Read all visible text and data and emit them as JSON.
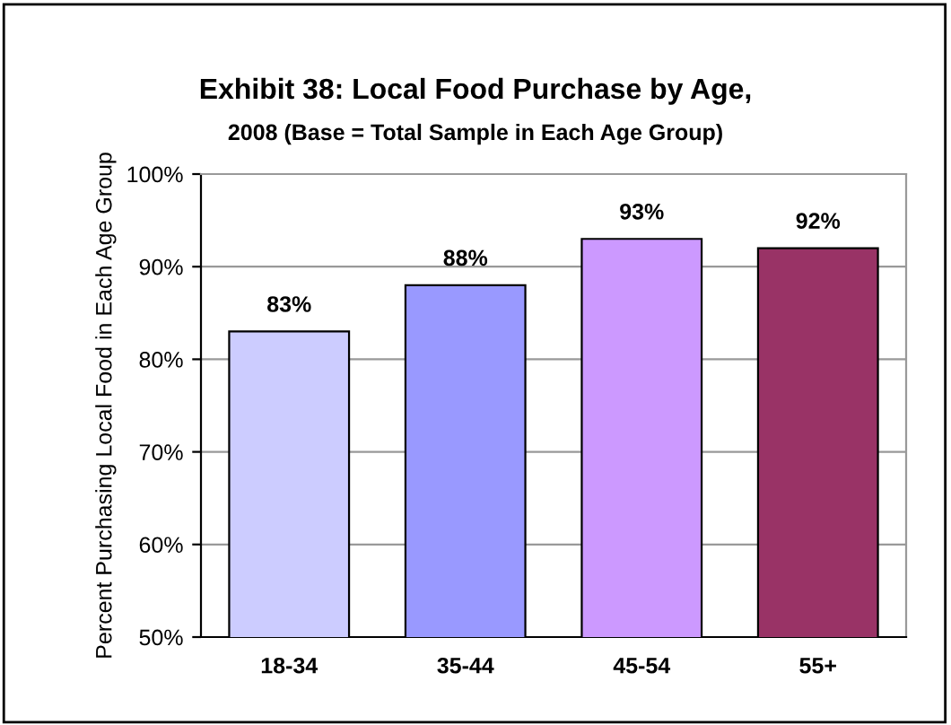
{
  "chart_data": {
    "type": "bar",
    "title": "Exhibit 38: Local Food Purchase by Age,",
    "subtitle": "2008 (Base = Total Sample in Each Age Group)",
    "ylabel": "Percent Purchasing Local Food in Each Age Group",
    "categories": [
      "18-34",
      "35-44",
      "45-54",
      "55+"
    ],
    "values": [
      83,
      88,
      93,
      92
    ],
    "value_labels": [
      "83%",
      "88%",
      "93%",
      "92%"
    ],
    "colors": [
      "#ccccff",
      "#9999ff",
      "#cc99ff",
      "#993366"
    ],
    "ylim": [
      50,
      100
    ],
    "yticks": [
      {
        "value": 50,
        "label": "50%"
      },
      {
        "value": 60,
        "label": "60%"
      },
      {
        "value": 70,
        "label": "70%"
      },
      {
        "value": 80,
        "label": "80%"
      },
      {
        "value": 90,
        "label": "90%"
      },
      {
        "value": 100,
        "label": "100%"
      }
    ],
    "grid": "y"
  }
}
